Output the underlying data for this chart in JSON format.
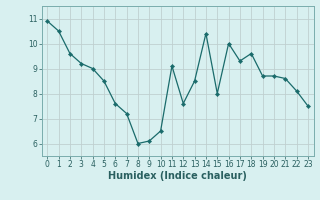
{
  "x": [
    0,
    1,
    2,
    3,
    4,
    5,
    6,
    7,
    8,
    9,
    10,
    11,
    12,
    13,
    14,
    15,
    16,
    17,
    18,
    19,
    20,
    21,
    22,
    23
  ],
  "y": [
    10.9,
    10.5,
    9.6,
    9.2,
    9.0,
    8.5,
    7.6,
    7.2,
    6.0,
    6.1,
    6.5,
    9.1,
    7.6,
    8.5,
    10.4,
    8.0,
    10.0,
    9.3,
    9.6,
    8.7,
    8.7,
    8.6,
    8.1,
    7.5
  ],
  "line_color": "#1a6b6b",
  "marker": "D",
  "marker_size": 2.2,
  "bg_color": "#d8f0f0",
  "grid_color": "#c0d0d0",
  "xlabel": "Humidex (Indice chaleur)",
  "ylim": [
    5.5,
    11.5
  ],
  "xlim": [
    -0.5,
    23.5
  ],
  "yticks": [
    6,
    7,
    8,
    9,
    10,
    11
  ],
  "xticks": [
    0,
    1,
    2,
    3,
    4,
    5,
    6,
    7,
    8,
    9,
    10,
    11,
    12,
    13,
    14,
    15,
    16,
    17,
    18,
    19,
    20,
    21,
    22,
    23
  ],
  "tick_fontsize": 5.5,
  "xlabel_fontsize": 7.0,
  "axis_color": "#2a6060",
  "spine_color": "#7aacac"
}
